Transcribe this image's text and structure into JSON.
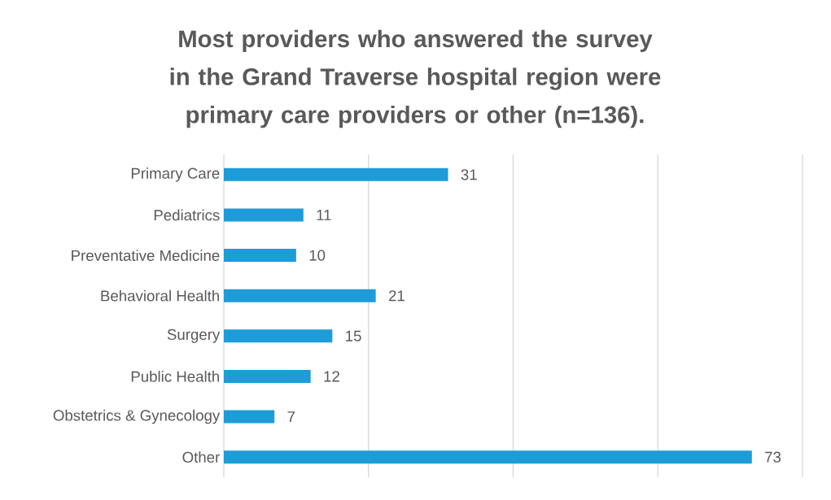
{
  "chart_data": {
    "type": "bar",
    "orientation": "horizontal",
    "title": "Most providers who answered the survey in the Grand Traverse hospital region were primary care providers or other (n=136).",
    "categories": [
      "Primary Care",
      "Pediatrics",
      "Preventative Medicine",
      "Behavioral Health",
      "Surgery",
      "Public Health",
      "Obstetrics & Gynecology",
      "Other"
    ],
    "values": [
      31,
      11,
      10,
      21,
      15,
      12,
      7,
      73
    ],
    "color": "#1e9cd8",
    "xlim": [
      0,
      80
    ],
    "xticks": [
      {
        "value": 0,
        "label": null
      },
      {
        "value": 20,
        "label": null
      },
      {
        "value": 40,
        "label": null
      },
      {
        "value": 60,
        "label": null
      },
      {
        "value": 80,
        "label": null
      }
    ],
    "tick_labels": "y",
    "grid": "x",
    "data_labels": true
  }
}
